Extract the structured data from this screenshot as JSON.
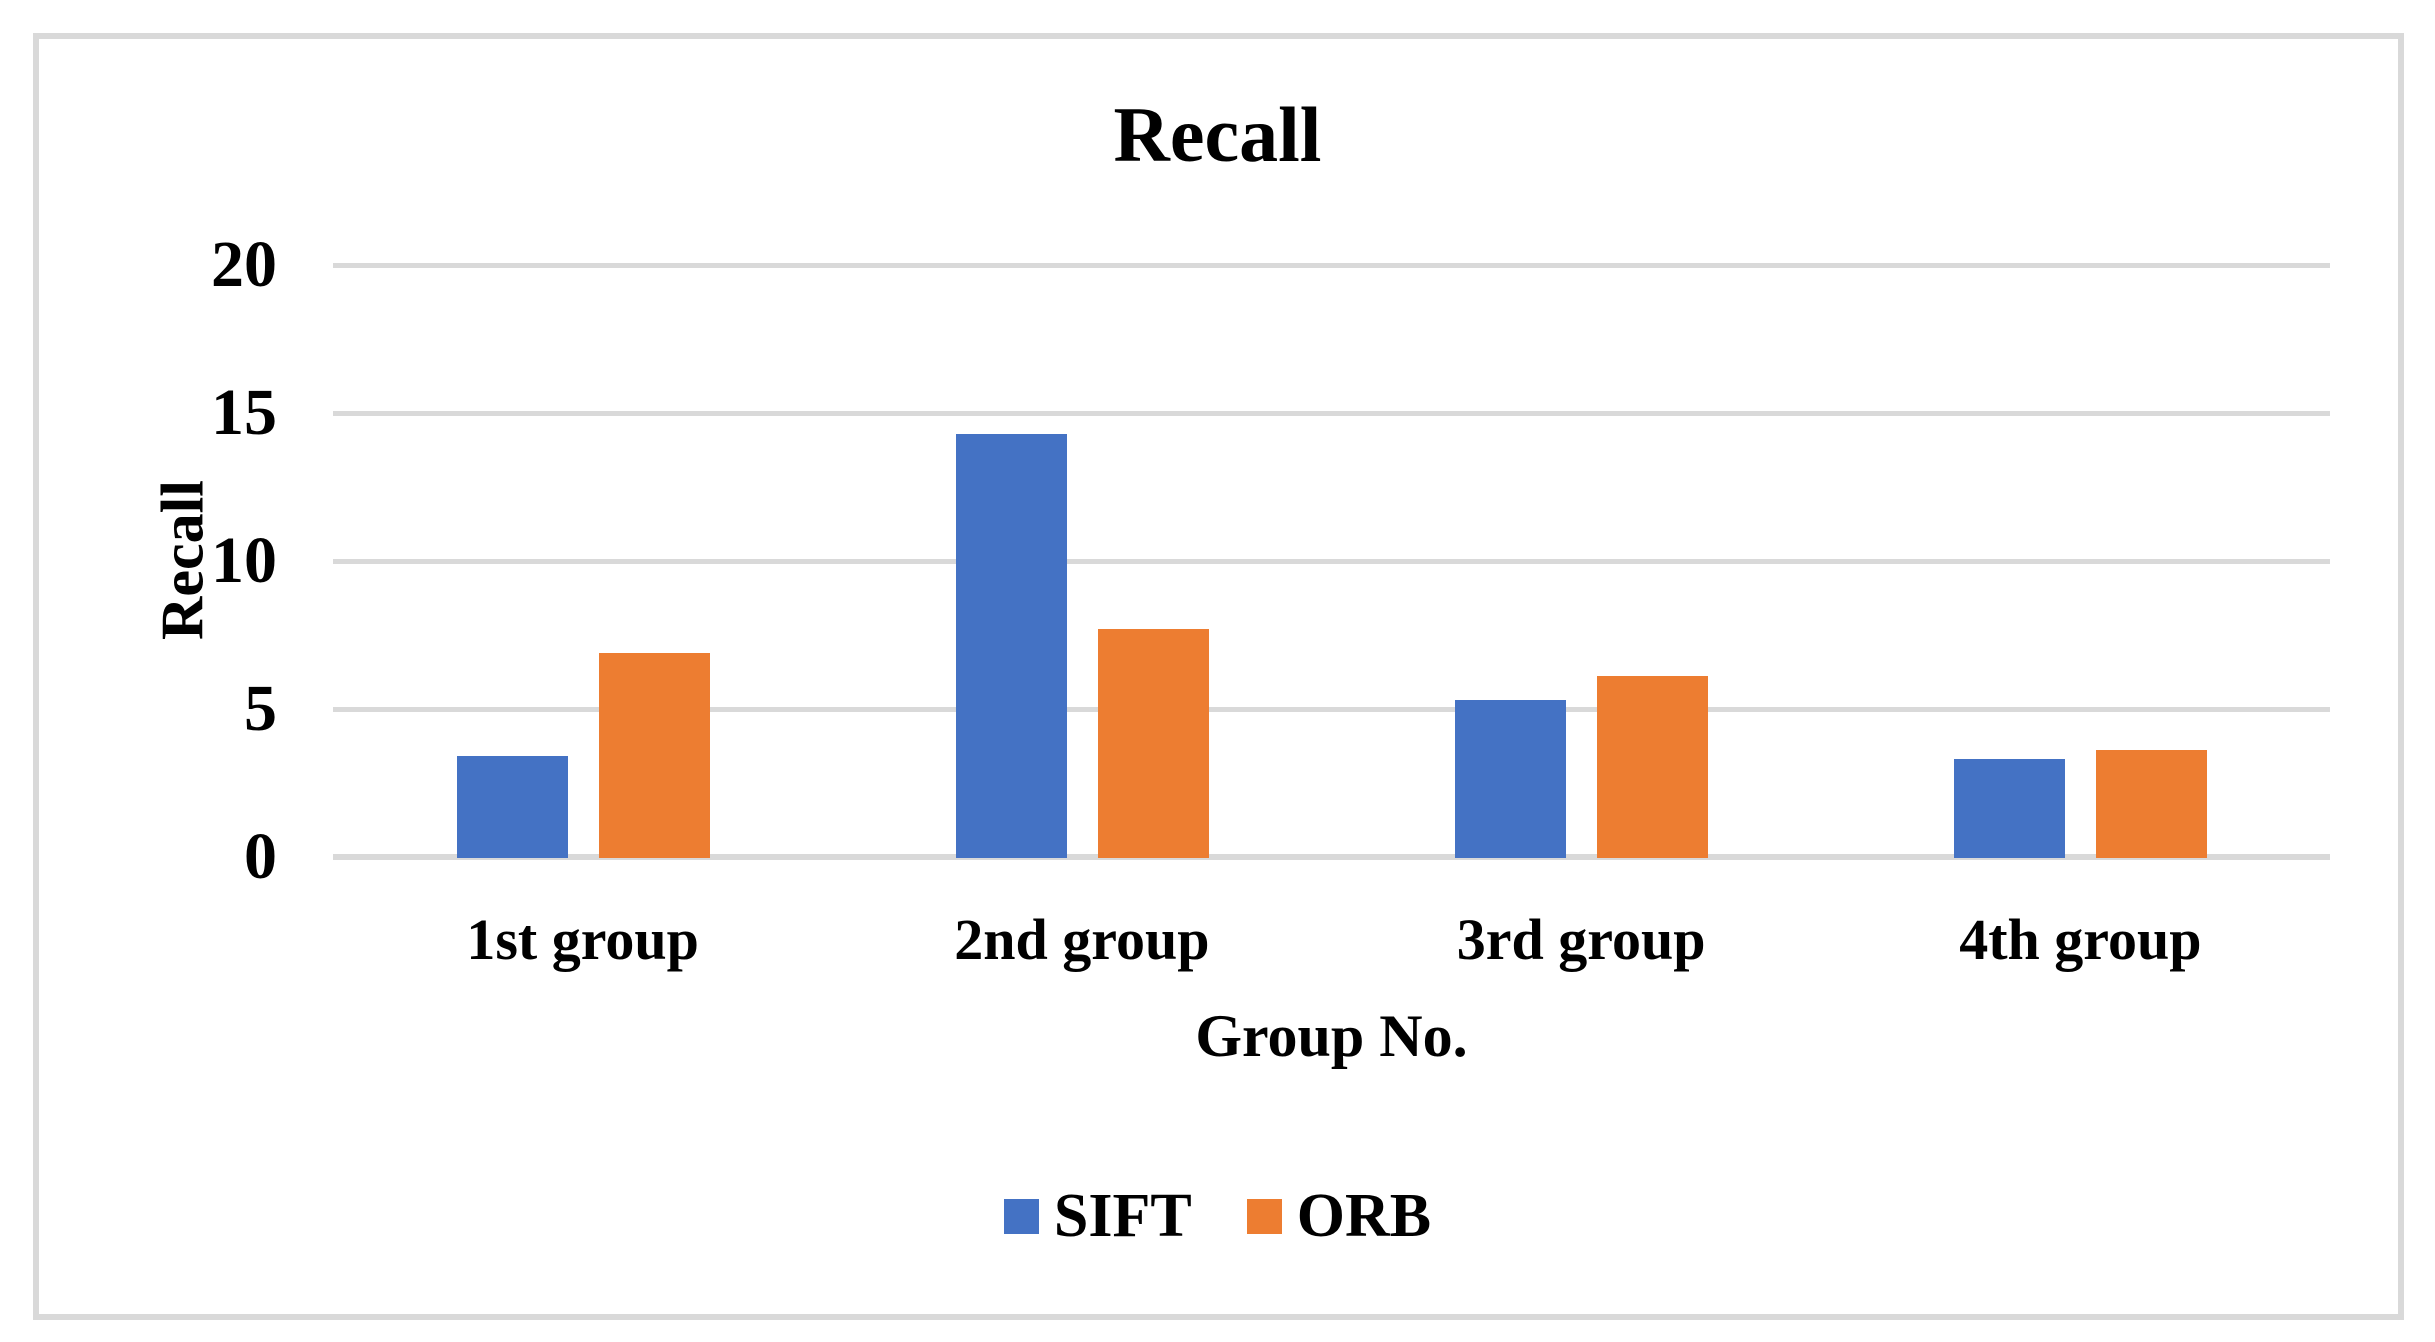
{
  "chart_data": {
    "type": "bar",
    "title": "Recall",
    "xlabel": "Group No.",
    "ylabel": "Recall",
    "categories": [
      "1st group",
      "2nd group",
      "3rd group",
      "4th group"
    ],
    "series": [
      {
        "name": "SIFT",
        "color": "#4472C4",
        "values": [
          3.4,
          14.3,
          5.3,
          3.3
        ]
      },
      {
        "name": "ORB",
        "color": "#ED7D31",
        "values": [
          6.9,
          7.7,
          6.1,
          3.6
        ]
      }
    ],
    "ylim": [
      0,
      20
    ],
    "yticks": [
      0,
      5,
      10,
      15,
      20
    ],
    "grid": true,
    "legend_position": "bottom"
  },
  "colors": {
    "bar_blue": "#4472C4",
    "bar_orange": "#ED7D31",
    "gridline": "#D9D9D9",
    "axis_line": "#D9D9D9",
    "chart_border": "#D9D9D9",
    "text": "#000000",
    "background": "#FFFFFF"
  }
}
